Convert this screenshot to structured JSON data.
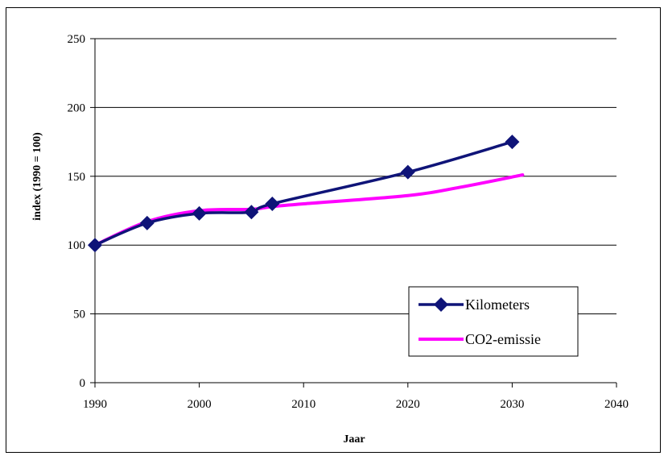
{
  "chart_data": {
    "type": "line",
    "title": "",
    "xlabel": "Jaar",
    "ylabel": "index (1990 = 100)",
    "xlim": [
      1990,
      2040
    ],
    "ylim": [
      0,
      250
    ],
    "xticks": [
      1990,
      2000,
      2010,
      2020,
      2030,
      2040
    ],
    "yticks": [
      0,
      50,
      100,
      150,
      200,
      250
    ],
    "grid": "horizontal",
    "legend_position": "bottom-right",
    "series": [
      {
        "name": "Kilometers",
        "color": "#0f1478",
        "marker": "diamond",
        "x": [
          1990,
          1995,
          2000,
          2005,
          2007,
          2020,
          2030
        ],
        "y": [
          100,
          116,
          123,
          124,
          130,
          153,
          175
        ]
      },
      {
        "name": "CO2-emissie",
        "color": "#ff00ff",
        "marker": "none",
        "x": [
          1990,
          1995,
          2000,
          2005,
          2007,
          2010,
          2020,
          2025,
          2031
        ],
        "y": [
          100,
          117,
          125,
          126,
          128,
          130,
          136,
          142,
          151
        ]
      }
    ]
  }
}
